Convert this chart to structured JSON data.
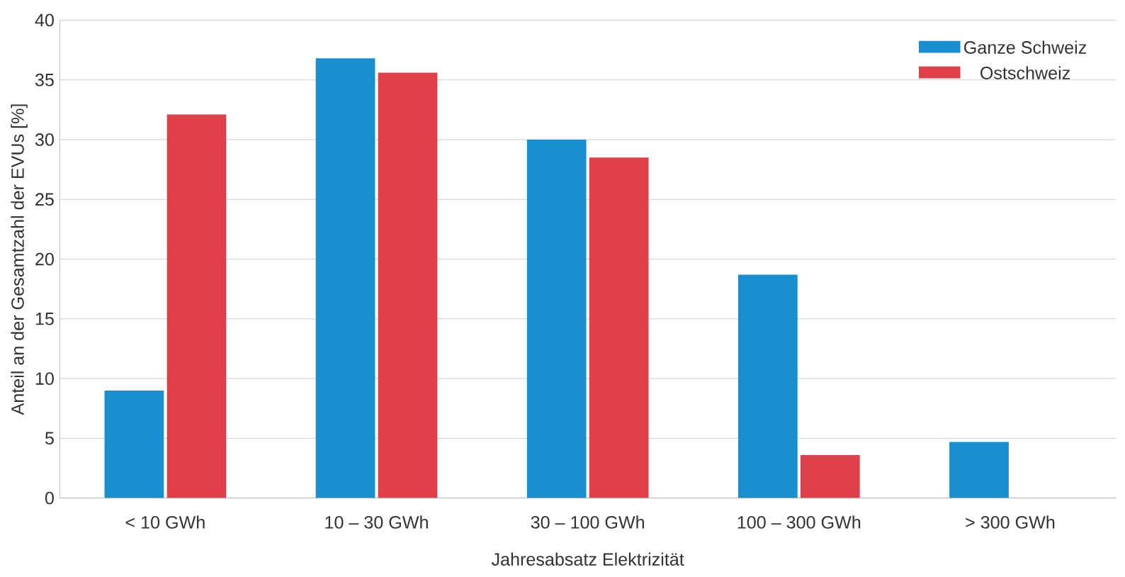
{
  "chart_data": {
    "type": "bar",
    "xlabel": "Jahresabsatz Elektrizität",
    "ylabel": "Anteil an der Gesamtzahl der EVUs [%]",
    "categories": [
      "< 10 GWh",
      "10 – 30 GWh",
      "30 – 100 GWh",
      "100 – 300 GWh",
      "> 300 GWh"
    ],
    "series": [
      {
        "name": "Ganze Schweiz",
        "color": "#1a8fd0",
        "values": [
          9.0,
          36.8,
          30.0,
          18.7,
          4.7
        ]
      },
      {
        "name": "Ostschweiz",
        "color": "#e0404a",
        "values": [
          32.1,
          35.6,
          28.5,
          3.6,
          null
        ]
      }
    ],
    "ylim": [
      0,
      40
    ],
    "yticks": [
      0,
      5,
      10,
      15,
      20,
      25,
      30,
      35,
      40
    ],
    "grid": "y",
    "legend": "top right"
  }
}
